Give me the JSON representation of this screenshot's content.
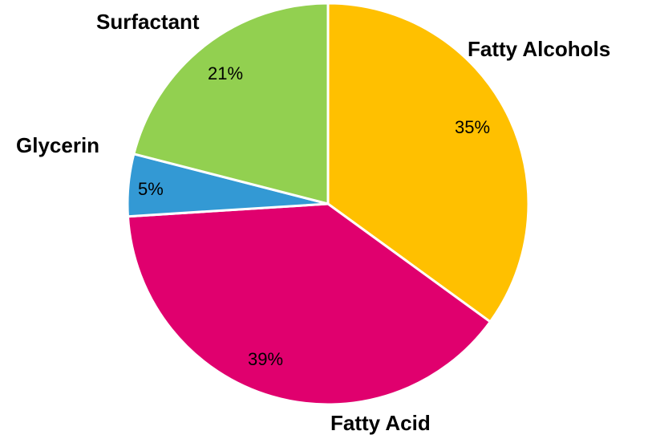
{
  "chart_data": {
    "type": "pie",
    "title": "",
    "start_angle_deg": 0,
    "direction": "clockwise",
    "slice_border_color": "#ffffff",
    "slices": [
      {
        "label": "Fatty Alcohols",
        "value": 35,
        "value_label": "35%",
        "color": "#FFC000"
      },
      {
        "label": "Fatty Acid",
        "value": 39,
        "value_label": "39%",
        "color": "#E0006E"
      },
      {
        "label": "Glycerin",
        "value": 5,
        "value_label": "5%",
        "color": "#3399D4"
      },
      {
        "label": "Surfactant",
        "value": 21,
        "value_label": "21%",
        "color": "#92D050"
      }
    ]
  }
}
